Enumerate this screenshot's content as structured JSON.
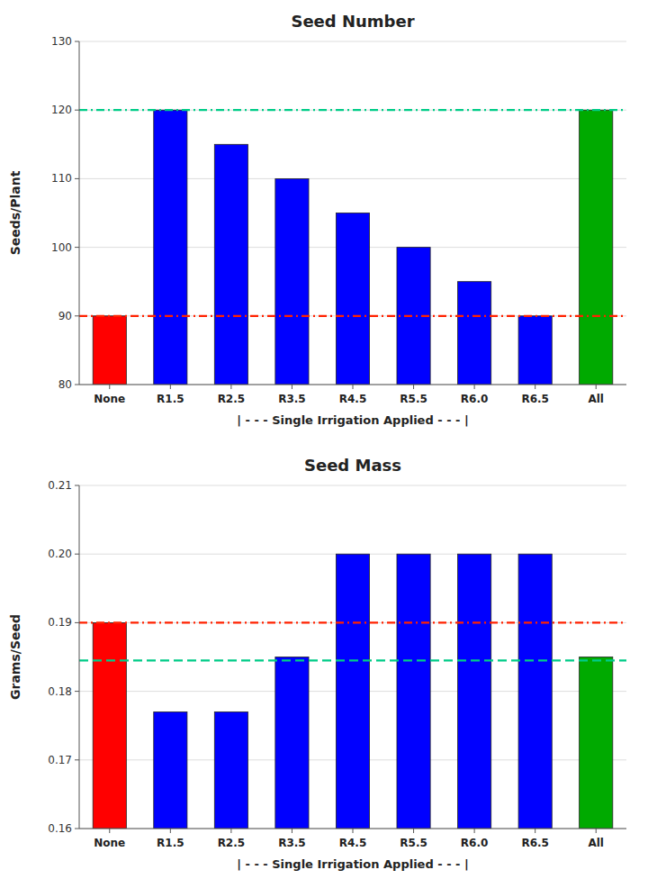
{
  "chart_data": [
    {
      "type": "bar",
      "title": "Seed Number",
      "categories": [
        "None",
        "R1.5",
        "R2.5",
        "R3.5",
        "R4.5",
        "R5.5",
        "R6.0",
        "R6.5",
        "All"
      ],
      "values": [
        90,
        120,
        115,
        110,
        105,
        100,
        95,
        90,
        120
      ],
      "colors": [
        "#ff0000",
        "#0000ff",
        "#0000ff",
        "#0000ff",
        "#0000ff",
        "#0000ff",
        "#0000ff",
        "#0000ff",
        "#00aa00"
      ],
      "xlabel": "| - - - Single Irrigation Applied - - - |",
      "ylabel": "Seeds/Plant",
      "ylim": [
        80,
        130
      ],
      "yticks": [
        80,
        90,
        100,
        110,
        120,
        130
      ],
      "grid": true,
      "reference_lines": [
        {
          "value": 90,
          "color": "#ff2200",
          "line_style": "dashdot"
        },
        {
          "value": 120,
          "color": "#00cc88",
          "line_style": "dashdot"
        }
      ]
    },
    {
      "type": "bar",
      "title": "Seed Mass",
      "categories": [
        "None",
        "R1.5",
        "R2.5",
        "R3.5",
        "R4.5",
        "R5.5",
        "R6.0",
        "R6.5",
        "All"
      ],
      "values": [
        0.19,
        0.177,
        0.177,
        0.185,
        0.2,
        0.2,
        0.2,
        0.2,
        0.185
      ],
      "colors": [
        "#ff0000",
        "#0000ff",
        "#0000ff",
        "#0000ff",
        "#0000ff",
        "#0000ff",
        "#0000ff",
        "#0000ff",
        "#00aa00"
      ],
      "xlabel": "| - - - Single Irrigation Applied - - - |",
      "ylabel": "Grams/Seed",
      "ylim": [
        0.16,
        0.21
      ],
      "yticks": [
        0.16,
        0.17,
        0.18,
        0.19,
        {
          "value": 0.2,
          "label": "0.20"
        },
        0.21
      ],
      "grid": true,
      "reference_lines": [
        {
          "value": 0.19,
          "color": "#ff2200",
          "line_style": "dashdot"
        },
        {
          "value": 0.1845,
          "color": "#00cc88",
          "line_style": "dashed"
        }
      ]
    }
  ]
}
